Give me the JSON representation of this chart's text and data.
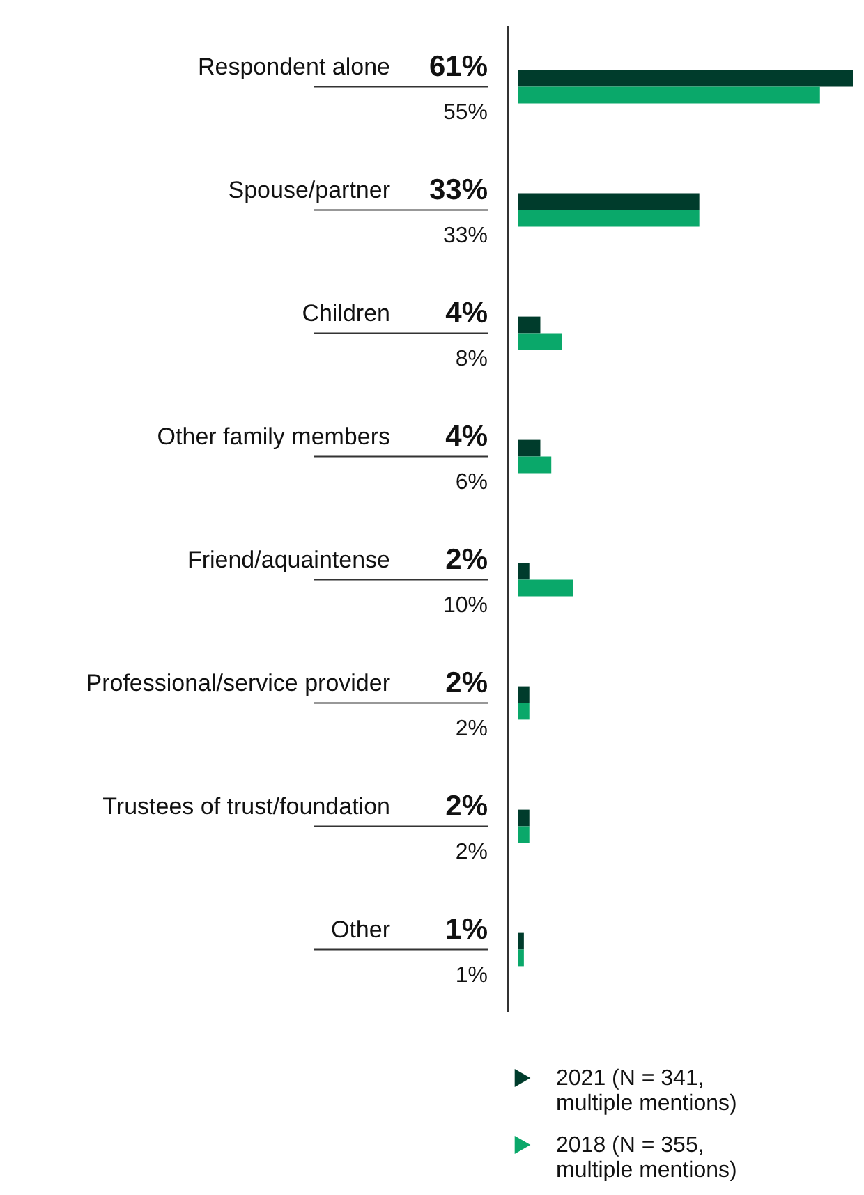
{
  "chart_data": {
    "type": "bar",
    "orientation": "horizontal",
    "legend": "bottom",
    "tick_labels": false,
    "categories": [
      "Respondent alone",
      "Spouse/partner",
      "Children",
      "Other family members",
      "Friend/aquaintense",
      "Professional/service provider",
      "Trustees of trust/foundation",
      "Other"
    ],
    "series": [
      {
        "name": "2021 (N = 341, multiple mentions)",
        "color": "#003c2c",
        "values": [
          61,
          33,
          4,
          4,
          2,
          2,
          2,
          1
        ],
        "value_labels": [
          "61%",
          "33%",
          "4%",
          "4%",
          "2%",
          "2%",
          "2%",
          "1%"
        ]
      },
      {
        "name": "2018 (N = 355, multiple mentions)",
        "color": "#0aa86a",
        "values": [
          55,
          33,
          8,
          6,
          10,
          2,
          2,
          1
        ],
        "value_labels": [
          "55%",
          "33%",
          "8%",
          "6%",
          "10%",
          "2%",
          "2%",
          "1%"
        ]
      }
    ]
  }
}
